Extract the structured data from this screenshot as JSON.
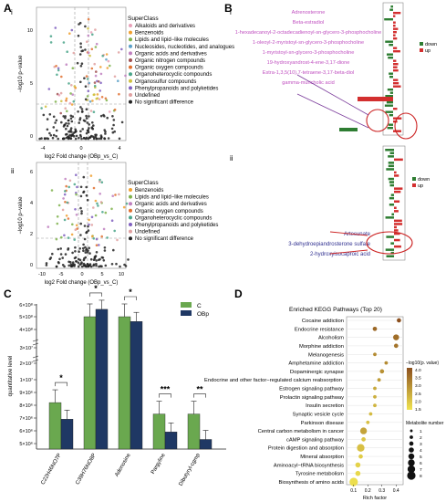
{
  "panel_letters": [
    "A",
    "B",
    "C",
    "D"
  ],
  "panel_A": {
    "sub_i": "i",
    "sub_ii": "ii",
    "volcano_i": {
      "xlabel": "log2 Fold change (OBp_vs_C)",
      "ylabel": "−log10 p−value",
      "x_ticks": [
        "-4",
        "0",
        "4"
      ],
      "y_ticks": [
        "0",
        "5",
        "10"
      ],
      "legend_title": "SuperClass",
      "legend": [
        {
          "label": "Alkaloids and derivatives",
          "color": "#e8a0b8"
        },
        {
          "label": "Benzenoids",
          "color": "#f0a030"
        },
        {
          "label": "Lipids and lipid−like molecules",
          "color": "#7fb24c"
        },
        {
          "label": "Nucleosides, nucleotides, and analogues",
          "color": "#5aa0c8"
        },
        {
          "label": "Organic acids and derivatives",
          "color": "#c080c0"
        },
        {
          "label": "Organic nitrogen compounds",
          "color": "#a05050"
        },
        {
          "label": "Organic oxygen compounds",
          "color": "#e07030"
        },
        {
          "label": "Organoheterocyclic compounds",
          "color": "#4aa58a"
        },
        {
          "label": "Organosulfur compounds",
          "color": "#d0c040"
        },
        {
          "label": "Phenylpropanoids and polyketides",
          "color": "#8060c0"
        },
        {
          "label": "Undefined",
          "color": "#e0a0a0"
        },
        {
          "label": "No significant difference",
          "color": "#222222"
        }
      ]
    },
    "volcano_ii": {
      "xlabel": "log2 Fold change (OBp_vs_C)",
      "ylabel": "−log10 p−value",
      "x_ticks": [
        "-10",
        "-5",
        "0",
        "5",
        "10"
      ],
      "y_ticks": [
        "0",
        "2",
        "4",
        "6"
      ],
      "legend_title": "SuperClass",
      "legend": [
        {
          "label": "Benzenoids",
          "color": "#f0a030"
        },
        {
          "label": "Lipids and lipid−like molecules",
          "color": "#7fb24c"
        },
        {
          "label": "Organic acids and derivatives",
          "color": "#c080c0"
        },
        {
          "label": "Organic oxygen compounds",
          "color": "#e07030"
        },
        {
          "label": "Organoheterocyclic compounds",
          "color": "#4aa58a"
        },
        {
          "label": "Phenylpropanoids and polyketides",
          "color": "#8060c0"
        },
        {
          "label": "Undefined",
          "color": "#e0a0a0"
        },
        {
          "label": "No significant difference",
          "color": "#222222"
        }
      ]
    }
  },
  "panel_B": {
    "sub_i": "i",
    "sub_ii": "ii",
    "legend": [
      {
        "label": "down",
        "color": "#2e7d32"
      },
      {
        "label": "up",
        "color": "#d32f2f"
      }
    ],
    "labels_i": [
      "Adrenosterone",
      "Beta-estradiol",
      "1-hexadecanoyl-2-octadecadienoyl-sn-glycero-3-phosphocholine",
      "1-oleoyl-2-myristoyl-sn-glycero-3-phosphocholine",
      "1-myristoyl-sn-glycero-3-phosphocholine",
      "19-hydroxyandrost-4-ene-3,17-dione",
      "Estra-1,3,5(10),7-tetraene-3,17-beta-diol",
      "gamma-muricholic acid"
    ],
    "labels_i_color": "#c050c0",
    "labels_ii": [
      "Artesunate",
      "3-dehydroepiandrosterone sulfate",
      "2-hydroxyisocaproic acid"
    ],
    "labels_ii_color": "#303090"
  },
  "panel_C": {
    "ylabel": "quantitative level",
    "legend": [
      {
        "label": "C",
        "color": "#6aa84f"
      },
      {
        "label": "OBp",
        "color": "#1f3864"
      }
    ],
    "annotation": "Endocrine and other factor−regulated calcium reabsorption",
    "y_ticks": [
      "5×10⁶",
      "6×10⁶",
      "7×10⁶",
      "8×10⁶",
      "9×10⁶",
      "1×10⁷",
      "2×10⁷",
      "3×10⁷",
      "4×10⁸",
      "5×10⁸",
      "6×10⁸"
    ],
    "significance": [
      "*",
      "*",
      "*",
      "***",
      "**"
    ]
  },
  "panel_D": {
    "title": "Enriched KEGG Pathways (Top 20)",
    "xlabel": "Rich factor",
    "x_ticks": [
      "0.1",
      "0.2",
      "0.3",
      "0.4"
    ],
    "color_legend_title": "−log10(p. value)",
    "color_ticks": [
      "4.0",
      "3.5",
      "3.0",
      "2.5",
      "2.0",
      "1.5"
    ],
    "size_legend_title": "Metabolite number",
    "size_ticks": [
      "1",
      "2",
      "3",
      "4",
      "5",
      "6",
      "7",
      "8"
    ]
  },
  "chart_data": [
    {
      "type": "bar",
      "panel": "C",
      "categories": [
        "C22H46NO7P",
        "C39H76NO8P",
        "Adenosine",
        "Pargyline",
        "Dibutyryl-cgmp"
      ],
      "series": [
        {
          "name": "C",
          "values": [
            8200000.0,
            500000000.0,
            500000000.0,
            7300000.0,
            7300000.0
          ]
        },
        {
          "name": "OBp",
          "values": [
            6900000.0,
            560000000.0,
            460000000.0,
            5900000.0,
            5300000.0
          ]
        }
      ],
      "significance": [
        "*",
        "*",
        "*",
        "***",
        "**"
      ]
    },
    {
      "type": "scatter",
      "panel": "D",
      "title": "Enriched KEGG Pathways (Top 20)",
      "xlabel": "Rich factor",
      "xlim": [
        0.05,
        0.45
      ],
      "pathways": [
        {
          "name": "Cocaine addiction",
          "rich_factor": 0.42,
          "neglog10p": 4.0,
          "count": 3
        },
        {
          "name": "Endocrine resistance",
          "rich_factor": 0.25,
          "neglog10p": 3.6,
          "count": 3
        },
        {
          "name": "Alcoholism",
          "rich_factor": 0.4,
          "neglog10p": 3.5,
          "count": 5
        },
        {
          "name": "Morphine addiction",
          "rich_factor": 0.4,
          "neglog10p": 3.4,
          "count": 3
        },
        {
          "name": "Melanogenesis",
          "rich_factor": 0.25,
          "neglog10p": 3.0,
          "count": 2
        },
        {
          "name": "Amphetamine addiction",
          "rich_factor": 0.33,
          "neglog10p": 3.0,
          "count": 2
        },
        {
          "name": "Dopaminergic synapse",
          "rich_factor": 0.3,
          "neglog10p": 2.9,
          "count": 3
        },
        {
          "name": "Endocrine and other factor−regulated calcium reabsorption",
          "rich_factor": 0.28,
          "neglog10p": 2.7,
          "count": 2
        },
        {
          "name": "Estrogen signaling pathway",
          "rich_factor": 0.25,
          "neglog10p": 2.5,
          "count": 2
        },
        {
          "name": "Prolactin signaling pathway",
          "rich_factor": 0.25,
          "neglog10p": 2.4,
          "count": 2
        },
        {
          "name": "Insulin secretion",
          "rich_factor": 0.25,
          "neglog10p": 2.3,
          "count": 2
        },
        {
          "name": "Synaptic vesicle cycle",
          "rich_factor": 0.22,
          "neglog10p": 2.2,
          "count": 2
        },
        {
          "name": "Parkinson disease",
          "rich_factor": 0.2,
          "neglog10p": 2.1,
          "count": 2
        },
        {
          "name": "Central carbon metabolism in cancer",
          "rich_factor": 0.17,
          "neglog10p": 2.6,
          "count": 6
        },
        {
          "name": "cAMP signaling pathway",
          "rich_factor": 0.17,
          "neglog10p": 2.0,
          "count": 3
        },
        {
          "name": "Protein digestion and absorption",
          "rich_factor": 0.15,
          "neglog10p": 2.1,
          "count": 7
        },
        {
          "name": "Mineral absorption",
          "rich_factor": 0.15,
          "neglog10p": 1.9,
          "count": 3
        },
        {
          "name": "Aminoacyl−tRNA biosynthesis",
          "rich_factor": 0.13,
          "neglog10p": 1.8,
          "count": 4
        },
        {
          "name": "Tyrosine metabolism",
          "rich_factor": 0.13,
          "neglog10p": 1.7,
          "count": 4
        },
        {
          "name": "Biosynthesis of amino acids",
          "rich_factor": 0.1,
          "neglog10p": 1.6,
          "count": 8
        }
      ]
    }
  ]
}
